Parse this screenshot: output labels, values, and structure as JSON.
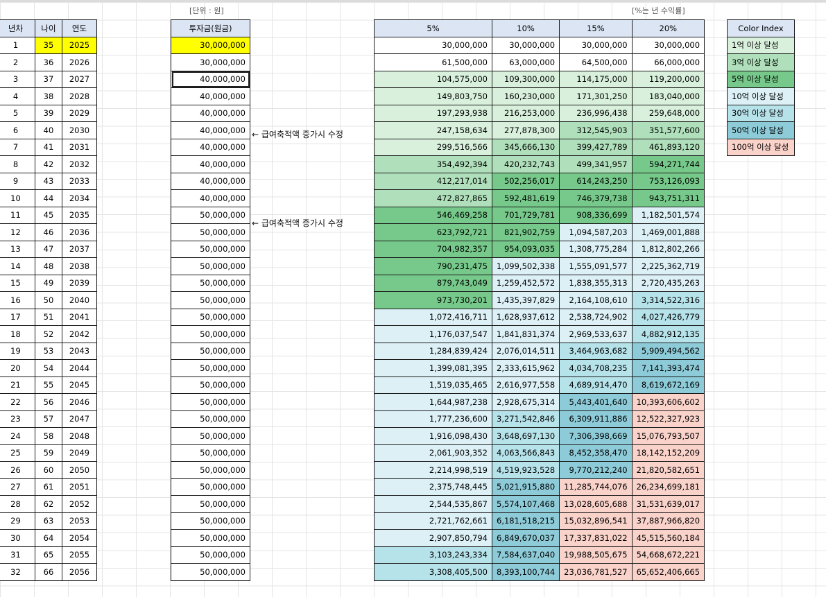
{
  "colors": {
    "header_fill": "#dbe5f4",
    "highlight": "#ffff00",
    "c100m": "#d8f0dc",
    "c300m": "#b0e0bb",
    "c500m": "#76c98a",
    "c1b": "#dcf0f6",
    "c3b": "#b6e2ea",
    "c5b": "#8ecbd8",
    "c10b": "#f9d2ca"
  },
  "left_table": {
    "headers": [
      "년차",
      "나이",
      "연도"
    ],
    "rows": [
      [
        "1",
        "35",
        "2025"
      ],
      [
        "2",
        "36",
        "2026"
      ],
      [
        "3",
        "37",
        "2027"
      ],
      [
        "4",
        "38",
        "2028"
      ],
      [
        "5",
        "39",
        "2029"
      ],
      [
        "6",
        "40",
        "2030"
      ],
      [
        "7",
        "41",
        "2031"
      ],
      [
        "8",
        "42",
        "2032"
      ],
      [
        "9",
        "43",
        "2033"
      ],
      [
        "10",
        "44",
        "2034"
      ],
      [
        "11",
        "45",
        "2035"
      ],
      [
        "12",
        "46",
        "2036"
      ],
      [
        "13",
        "47",
        "2037"
      ],
      [
        "14",
        "48",
        "2038"
      ],
      [
        "15",
        "49",
        "2039"
      ],
      [
        "16",
        "50",
        "2040"
      ],
      [
        "17",
        "51",
        "2041"
      ],
      [
        "18",
        "52",
        "2042"
      ],
      [
        "19",
        "53",
        "2043"
      ],
      [
        "20",
        "54",
        "2044"
      ],
      [
        "21",
        "55",
        "2045"
      ],
      [
        "22",
        "56",
        "2046"
      ],
      [
        "23",
        "57",
        "2047"
      ],
      [
        "24",
        "58",
        "2048"
      ],
      [
        "25",
        "59",
        "2049"
      ],
      [
        "26",
        "60",
        "2050"
      ],
      [
        "27",
        "61",
        "2051"
      ],
      [
        "28",
        "62",
        "2052"
      ],
      [
        "29",
        "63",
        "2053"
      ],
      [
        "30",
        "64",
        "2054"
      ],
      [
        "31",
        "65",
        "2055"
      ],
      [
        "32",
        "66",
        "2056"
      ]
    ]
  },
  "investment": {
    "unit_label": "[단위 : 원]",
    "header": "투자금(원금)",
    "values": [
      "30,000,000",
      "30,000,000",
      "40,000,000",
      "40,000,000",
      "40,000,000",
      "40,000,000",
      "40,000,000",
      "40,000,000",
      "40,000,000",
      "40,000,000",
      "50,000,000",
      "50,000,000",
      "50,000,000",
      "50,000,000",
      "50,000,000",
      "50,000,000",
      "50,000,000",
      "50,000,000",
      "50,000,000",
      "50,000,000",
      "50,000,000",
      "50,000,000",
      "50,000,000",
      "50,000,000",
      "50,000,000",
      "50,000,000",
      "50,000,000",
      "50,000,000",
      "50,000,000",
      "50,000,000",
      "50,000,000",
      "50,000,000"
    ]
  },
  "notes": {
    "n1": "← 급여축적액 증가시 수정",
    "n2": "← 급여축적액 증가시 수정"
  },
  "returns": {
    "unit_label": "[%는 년 수익률]",
    "headers": [
      "5%",
      "10%",
      "15%",
      "20%"
    ],
    "rows": [
      [
        "30,000,000",
        "30,000,000",
        "30,000,000",
        "30,000,000"
      ],
      [
        "61,500,000",
        "63,000,000",
        "64,500,000",
        "66,000,000"
      ],
      [
        "104,575,000",
        "109,300,000",
        "114,175,000",
        "119,200,000"
      ],
      [
        "149,803,750",
        "160,230,000",
        "171,301,250",
        "183,040,000"
      ],
      [
        "197,293,938",
        "216,253,000",
        "236,996,438",
        "259,648,000"
      ],
      [
        "247,158,634",
        "277,878,300",
        "312,545,903",
        "351,577,600"
      ],
      [
        "299,516,566",
        "345,666,130",
        "399,427,789",
        "461,893,120"
      ],
      [
        "354,492,394",
        "420,232,743",
        "499,341,957",
        "594,271,744"
      ],
      [
        "412,217,014",
        "502,256,017",
        "614,243,250",
        "753,126,093"
      ],
      [
        "472,827,865",
        "592,481,619",
        "746,379,738",
        "943,751,311"
      ],
      [
        "546,469,258",
        "701,729,781",
        "908,336,699",
        "1,182,501,574"
      ],
      [
        "623,792,721",
        "821,902,759",
        "1,094,587,203",
        "1,469,001,888"
      ],
      [
        "704,982,357",
        "954,093,035",
        "1,308,775,284",
        "1,812,802,266"
      ],
      [
        "790,231,475",
        "1,099,502,338",
        "1,555,091,577",
        "2,225,362,719"
      ],
      [
        "879,743,049",
        "1,259,452,572",
        "1,838,355,313",
        "2,720,435,263"
      ],
      [
        "973,730,201",
        "1,435,397,829",
        "2,164,108,610",
        "3,314,522,316"
      ],
      [
        "1,072,416,711",
        "1,628,937,612",
        "2,538,724,902",
        "4,027,426,779"
      ],
      [
        "1,176,037,547",
        "1,841,831,374",
        "2,969,533,637",
        "4,882,912,135"
      ],
      [
        "1,284,839,424",
        "2,076,014,511",
        "3,464,963,682",
        "5,909,494,562"
      ],
      [
        "1,399,081,395",
        "2,333,615,962",
        "4,034,708,235",
        "7,141,393,474"
      ],
      [
        "1,519,035,465",
        "2,616,977,558",
        "4,689,914,470",
        "8,619,672,169"
      ],
      [
        "1,644,987,238",
        "2,928,675,314",
        "5,443,401,640",
        "10,393,606,602"
      ],
      [
        "1,777,236,600",
        "3,271,542,846",
        "6,309,911,886",
        "12,522,327,923"
      ],
      [
        "1,916,098,430",
        "3,648,697,130",
        "7,306,398,669",
        "15,076,793,507"
      ],
      [
        "2,061,903,352",
        "4,063,566,843",
        "8,452,358,470",
        "18,142,152,209"
      ],
      [
        "2,214,998,519",
        "4,519,923,528",
        "9,770,212,240",
        "21,820,582,651"
      ],
      [
        "2,375,748,445",
        "5,021,915,880",
        "11,285,744,076",
        "26,234,699,181"
      ],
      [
        "2,544,535,867",
        "5,574,107,468",
        "13,028,605,688",
        "31,531,639,017"
      ],
      [
        "2,721,762,661",
        "6,181,518,215",
        "15,032,896,541",
        "37,887,966,820"
      ],
      [
        "2,907,850,794",
        "6,849,670,037",
        "17,337,831,022",
        "45,515,560,184"
      ],
      [
        "3,103,243,334",
        "7,584,637,040",
        "19,988,505,675",
        "54,668,672,221"
      ],
      [
        "3,308,405,500",
        "8,393,100,744",
        "23,036,781,527",
        "65,652,406,665"
      ]
    ]
  },
  "color_index": {
    "header": "Color Index",
    "items": [
      {
        "label": "1억 이상 달성",
        "color": "#d8f0dc"
      },
      {
        "label": "3억 이상 달성",
        "color": "#b0e0bb"
      },
      {
        "label": "5억 이상 달성",
        "color": "#76c98a"
      },
      {
        "label": "10억 이상 달성",
        "color": "#dcf0f6"
      },
      {
        "label": "30억 이상 달성",
        "color": "#b6e2ea"
      },
      {
        "label": "50억 이상 달성",
        "color": "#8ecbd8"
      },
      {
        "label": "100억 이상 달성",
        "color": "#f9d2ca"
      }
    ]
  }
}
